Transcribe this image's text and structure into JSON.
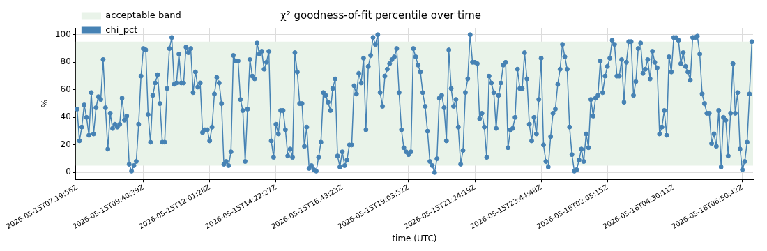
{
  "chart_data": {
    "type": "line",
    "title": "χ² goodness-of-fit percentile over time",
    "xlabel": "time (UTC)",
    "ylabel": "%",
    "categories": [
      "2026-05-15T07:19:56Z",
      null,
      null,
      null,
      null,
      null,
      null,
      null,
      null,
      null,
      null,
      null,
      null,
      null,
      null,
      null,
      null,
      null,
      null,
      null,
      null,
      null,
      null,
      null,
      null,
      null,
      null,
      null,
      "2026-05-15T09:40:39Z",
      null,
      null,
      null,
      null,
      null,
      null,
      null,
      null,
      null,
      null,
      null,
      null,
      null,
      null,
      null,
      null,
      null,
      null,
      null,
      null,
      null,
      null,
      null,
      null,
      null,
      null,
      null,
      "2026-05-15T12:01:28Z",
      null,
      null,
      null,
      null,
      null,
      null,
      null,
      null,
      null,
      null,
      null,
      null,
      null,
      null,
      null,
      null,
      null,
      null,
      null,
      null,
      null,
      null,
      null,
      null,
      null,
      null,
      null,
      "2026-05-15T14:22:27Z",
      null,
      null,
      null,
      null,
      null,
      null,
      null,
      null,
      null,
      null,
      null,
      null,
      null,
      null,
      null,
      null,
      null,
      null,
      null,
      null,
      null,
      null,
      null,
      null,
      null,
      null,
      null,
      "2026-05-15T16:43:23Z",
      null,
      null,
      null,
      null,
      null,
      null,
      null,
      null,
      null,
      null,
      null,
      null,
      null,
      null,
      null,
      null,
      null,
      null,
      null,
      null,
      null,
      null,
      null,
      null,
      null,
      null,
      null,
      "2026-05-15T19:03:52Z",
      null,
      null,
      null,
      null,
      null,
      null,
      null,
      null,
      null,
      null,
      null,
      null,
      null,
      null,
      null,
      null,
      null,
      null,
      null,
      null,
      null,
      null,
      null,
      null,
      null,
      null,
      null,
      "2026-05-15T21:24:19Z",
      null,
      null,
      null,
      null,
      null,
      null,
      null,
      null,
      null,
      null,
      null,
      null,
      null,
      null,
      null,
      null,
      null,
      null,
      null,
      null,
      null,
      null,
      null,
      null,
      null,
      null,
      null,
      "2026-05-15T23:44:48Z",
      null,
      null,
      null,
      null,
      null,
      null,
      null,
      null,
      null,
      null,
      null,
      null,
      null,
      null,
      null,
      null,
      null,
      null,
      null,
      null,
      null,
      null,
      null,
      null,
      null,
      null,
      null,
      "2026-05-16T02:05:15Z",
      null,
      null,
      null,
      null,
      null,
      null,
      null,
      null,
      null,
      null,
      null,
      null,
      null,
      null,
      null,
      null,
      null,
      null,
      null,
      null,
      null,
      null,
      null,
      null,
      null,
      null,
      null,
      "2026-05-16T04:30:11Z",
      null,
      null,
      null,
      null,
      null,
      null,
      null,
      null,
      null,
      null,
      null,
      null,
      null,
      null,
      null,
      null,
      null,
      null,
      null,
      null,
      null,
      null,
      null,
      null,
      null,
      null,
      null,
      null,
      "2026-05-16T06:50:42Z",
      null,
      null,
      null,
      null
    ],
    "series": [
      {
        "name": "chi_pct",
        "color": "#4682b4",
        "values": [
          46,
          23,
          33,
          49,
          40,
          27,
          58,
          28,
          47,
          55,
          53,
          82,
          47,
          17,
          43,
          32,
          35,
          33,
          35,
          54,
          38,
          41,
          6,
          1,
          5,
          8,
          35,
          70,
          90,
          89,
          42,
          22,
          56,
          65,
          71,
          50,
          22,
          22,
          61,
          90,
          98,
          64,
          65,
          86,
          65,
          65,
          91,
          87,
          90,
          58,
          73,
          62,
          65,
          29,
          31,
          31,
          23,
          33,
          57,
          69,
          65,
          50,
          6,
          8,
          5,
          15,
          85,
          81,
          81,
          53,
          45,
          8,
          46,
          82,
          70,
          68,
          94,
          86,
          88,
          75,
          80,
          88,
          23,
          11,
          35,
          28,
          45,
          45,
          31,
          12,
          17,
          11,
          87,
          73,
          50,
          50,
          19,
          33,
          3,
          5,
          2,
          1,
          11,
          22,
          58,
          56,
          51,
          45,
          61,
          68,
          12,
          4,
          15,
          5,
          9,
          20,
          20,
          63,
          57,
          72,
          65,
          83,
          31,
          77,
          85,
          98,
          93,
          100,
          58,
          48,
          70,
          75,
          79,
          82,
          84,
          90,
          58,
          31,
          18,
          15,
          13,
          15,
          90,
          84,
          78,
          73,
          58,
          48,
          30,
          8,
          5,
          0,
          10,
          54,
          56,
          47,
          23,
          89,
          61,
          48,
          53,
          33,
          6,
          16,
          58,
          68,
          100,
          80,
          80,
          79,
          39,
          43,
          33,
          11,
          70,
          65,
          58,
          32,
          56,
          65,
          78,
          80,
          18,
          31,
          32,
          40,
          75,
          61,
          61,
          87,
          68,
          35,
          23,
          40,
          28,
          53,
          83,
          20,
          8,
          4,
          26,
          43,
          46,
          64,
          75,
          93,
          84,
          75,
          33,
          13,
          1,
          2,
          9,
          17,
          8,
          28,
          18,
          53,
          41,
          54,
          56,
          81,
          58,
          70,
          77,
          83,
          96,
          93,
          70,
          70,
          82,
          51,
          80,
          95,
          95,
          56,
          66,
          90,
          94,
          72,
          75,
          82,
          68,
          88,
          80,
          76,
          28,
          33,
          45,
          27,
          84,
          73,
          98,
          98,
          96,
          79,
          87,
          77,
          73,
          67,
          98,
          98,
          99,
          86,
          57,
          50,
          43,
          43,
          21,
          28,
          19,
          45,
          4,
          40,
          38,
          12,
          43,
          79,
          43,
          58,
          17,
          2,
          8,
          22,
          57,
          95
        ]
      }
    ],
    "bands": [
      {
        "axis": "y",
        "from": 5,
        "to": 95,
        "label": "acceptable band",
        "color": "#e9f3e9"
      }
    ],
    "ylim": [
      -5,
      105
    ],
    "yticks": [
      0,
      20,
      40,
      60,
      80,
      100
    ],
    "grid": true,
    "legend": "top left",
    "marker": "circle",
    "line_style": "solid"
  }
}
